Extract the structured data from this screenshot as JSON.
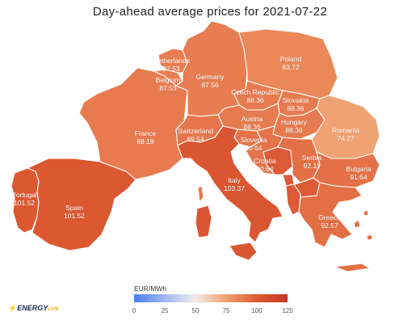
{
  "title": "Day-ahead average prices for 2021-07-22",
  "legend": {
    "title": "EUR/MWh",
    "ticks": [
      "0",
      "25",
      "50",
      "75",
      "100",
      "125"
    ],
    "range": [
      0,
      125
    ],
    "gradient_colors": [
      "#4a7ff0",
      "#a0b8f0",
      "#f3ece6",
      "#f0a070",
      "#de5a32",
      "#c23628"
    ]
  },
  "brand": {
    "name": "ENERGY",
    "suffix": "LIVE",
    "accent_color": "#e8a020"
  },
  "countries": [
    {
      "id": "netherlands",
      "name": "Netherlands",
      "price": "87.53",
      "value": 87.53
    },
    {
      "id": "belgium",
      "name": "Belgium",
      "price": "87.53",
      "value": 87.53
    },
    {
      "id": "germany",
      "name": "Germany",
      "price": "87.56",
      "value": 87.56
    },
    {
      "id": "poland",
      "name": "Poland",
      "price": "83.72",
      "value": 83.72
    },
    {
      "id": "czech",
      "name": "Czech Republic",
      "price": "88.36",
      "value": 88.36
    },
    {
      "id": "slovakia",
      "name": "Slovakia",
      "price": "88.36",
      "value": 88.36
    },
    {
      "id": "france",
      "name": "France",
      "price": "88.19",
      "value": 88.19
    },
    {
      "id": "switzerland",
      "name": "Switzerland",
      "price": "89.54",
      "value": 89.54
    },
    {
      "id": "austria",
      "name": "Austria",
      "price": "88.36",
      "value": 88.36
    },
    {
      "id": "hungary",
      "name": "Hungary",
      "price": "88.36",
      "value": 88.36
    },
    {
      "id": "romania",
      "name": "Romania",
      "price": "74.27",
      "value": 74.27
    },
    {
      "id": "slovenia",
      "name": "Slovenia",
      "price": "90.64",
      "value": 90.64
    },
    {
      "id": "croatia",
      "name": "Croatia",
      "price": "90.64",
      "value": 90.64
    },
    {
      "id": "serbia",
      "name": "Serbia",
      "price": "92.11",
      "value": 92.11
    },
    {
      "id": "bulgaria",
      "name": "Bulgaria",
      "price": "91.64",
      "value": 91.64
    },
    {
      "id": "italy",
      "name": "Italy",
      "price": "103.37",
      "value": 103.37
    },
    {
      "id": "portugal",
      "name": "Portugal",
      "price": "101.52",
      "value": 101.52
    },
    {
      "id": "spain",
      "name": "Spain",
      "price": "101.52",
      "value": 101.52
    },
    {
      "id": "greece",
      "name": "Greece",
      "price": "92.57",
      "value": 92.57
    }
  ]
}
